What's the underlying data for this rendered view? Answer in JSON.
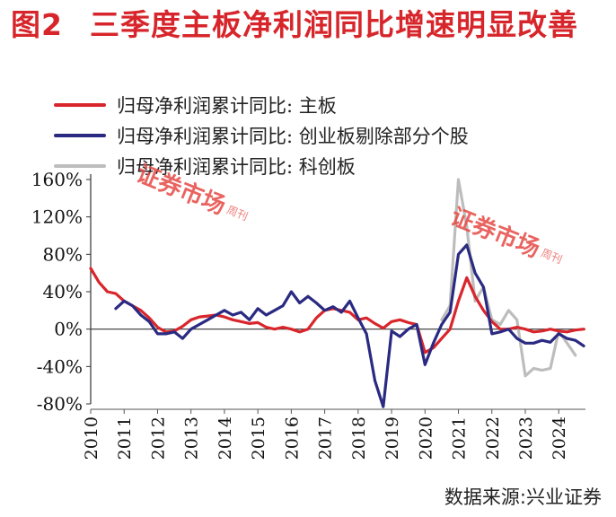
{
  "title": {
    "figure_no": "图2",
    "text": "三季度主板净利润同比增速明显改善"
  },
  "source": "数据来源:兴业证券",
  "watermark": {
    "main": "证券市场",
    "side": "周刊"
  },
  "colors": {
    "title": "#d7262b",
    "main_board": "#d8262c",
    "chinext": "#2a2a82",
    "star": "#bdbdbd"
  },
  "chart_data": {
    "type": "line",
    "title": "",
    "xlabel": "",
    "ylabel": "",
    "ylim": [
      -80,
      160
    ],
    "xlim": [
      2010,
      2024.8
    ],
    "yticks": [
      -80,
      -40,
      0,
      40,
      80,
      120,
      160
    ],
    "ytick_labels": [
      "-80%",
      "-40%",
      "0%",
      "40%",
      "80%",
      "120%",
      "160%"
    ],
    "xticks": [
      2010,
      2011,
      2012,
      2013,
      2014,
      2015,
      2016,
      2017,
      2018,
      2019,
      2020,
      2021,
      2022,
      2023,
      2024
    ],
    "xtick_labels": [
      "2010",
      "2011",
      "2012",
      "2013",
      "2014",
      "2015",
      "2016",
      "2017",
      "2018",
      "2019",
      "2020",
      "2021",
      "2022",
      "2023",
      "2024"
    ],
    "grid": false,
    "legend_position": "top-left",
    "series": [
      {
        "name": "归母净利润累计同比: 主板",
        "color": "#d8262c",
        "points": [
          [
            2010.0,
            65
          ],
          [
            2010.25,
            50
          ],
          [
            2010.5,
            40
          ],
          [
            2010.75,
            38
          ],
          [
            2011.0,
            30
          ],
          [
            2011.25,
            25
          ],
          [
            2011.5,
            20
          ],
          [
            2011.75,
            12
          ],
          [
            2012.0,
            2
          ],
          [
            2012.25,
            -3
          ],
          [
            2012.5,
            -2
          ],
          [
            2012.75,
            3
          ],
          [
            2013.0,
            10
          ],
          [
            2013.25,
            13
          ],
          [
            2013.5,
            14
          ],
          [
            2013.75,
            15
          ],
          [
            2014.0,
            13
          ],
          [
            2014.25,
            10
          ],
          [
            2014.5,
            8
          ],
          [
            2014.75,
            6
          ],
          [
            2015.0,
            7
          ],
          [
            2015.25,
            2
          ],
          [
            2015.5,
            0
          ],
          [
            2015.75,
            2
          ],
          [
            2016.0,
            0
          ],
          [
            2016.25,
            -3
          ],
          [
            2016.5,
            0
          ],
          [
            2016.75,
            12
          ],
          [
            2017.0,
            20
          ],
          [
            2017.25,
            22
          ],
          [
            2017.5,
            20
          ],
          [
            2017.75,
            18
          ],
          [
            2018.0,
            10
          ],
          [
            2018.25,
            12
          ],
          [
            2018.5,
            6
          ],
          [
            2018.75,
            1
          ],
          [
            2019.0,
            8
          ],
          [
            2019.25,
            10
          ],
          [
            2019.5,
            7
          ],
          [
            2019.75,
            5
          ],
          [
            2020.0,
            -25
          ],
          [
            2020.25,
            -20
          ],
          [
            2020.5,
            -10
          ],
          [
            2020.75,
            0
          ],
          [
            2021.0,
            30
          ],
          [
            2021.25,
            55
          ],
          [
            2021.5,
            35
          ],
          [
            2021.75,
            20
          ],
          [
            2022.0,
            8
          ],
          [
            2022.25,
            0
          ],
          [
            2022.5,
            0
          ],
          [
            2022.75,
            2
          ],
          [
            2023.0,
            0
          ],
          [
            2023.25,
            -3
          ],
          [
            2023.5,
            -2
          ],
          [
            2023.75,
            0
          ],
          [
            2024.0,
            -2
          ],
          [
            2024.25,
            -3
          ],
          [
            2024.5,
            -1
          ],
          [
            2024.75,
            0
          ]
        ]
      },
      {
        "name": "归母净利润累计同比: 创业板剔除部分个股",
        "color": "#2a2a82",
        "points": [
          [
            2010.75,
            22
          ],
          [
            2011.0,
            30
          ],
          [
            2011.25,
            25
          ],
          [
            2011.5,
            15
          ],
          [
            2011.75,
            8
          ],
          [
            2012.0,
            -5
          ],
          [
            2012.25,
            -5
          ],
          [
            2012.5,
            -3
          ],
          [
            2012.75,
            -10
          ],
          [
            2013.0,
            0
          ],
          [
            2013.25,
            5
          ],
          [
            2013.5,
            10
          ],
          [
            2013.75,
            15
          ],
          [
            2014.0,
            20
          ],
          [
            2014.25,
            15
          ],
          [
            2014.5,
            18
          ],
          [
            2014.75,
            10
          ],
          [
            2015.0,
            22
          ],
          [
            2015.25,
            15
          ],
          [
            2015.5,
            20
          ],
          [
            2015.75,
            25
          ],
          [
            2016.0,
            40
          ],
          [
            2016.25,
            28
          ],
          [
            2016.5,
            35
          ],
          [
            2016.75,
            28
          ],
          [
            2017.0,
            20
          ],
          [
            2017.25,
            24
          ],
          [
            2017.5,
            18
          ],
          [
            2017.75,
            30
          ],
          [
            2018.0,
            12
          ],
          [
            2018.25,
            -5
          ],
          [
            2018.5,
            -55
          ],
          [
            2018.75,
            -83
          ],
          [
            2019.0,
            -2
          ],
          [
            2019.25,
            -8
          ],
          [
            2019.5,
            0
          ],
          [
            2019.75,
            5
          ],
          [
            2020.0,
            -38
          ],
          [
            2020.25,
            -15
          ],
          [
            2020.5,
            5
          ],
          [
            2020.75,
            18
          ],
          [
            2021.0,
            80
          ],
          [
            2021.25,
            90
          ],
          [
            2021.5,
            60
          ],
          [
            2021.75,
            45
          ],
          [
            2022.0,
            -5
          ],
          [
            2022.25,
            -3
          ],
          [
            2022.5,
            0
          ],
          [
            2022.75,
            -10
          ],
          [
            2023.0,
            -15
          ],
          [
            2023.25,
            -15
          ],
          [
            2023.5,
            -12
          ],
          [
            2023.75,
            -14
          ],
          [
            2024.0,
            -5
          ],
          [
            2024.25,
            -10
          ],
          [
            2024.5,
            -12
          ],
          [
            2024.75,
            -18
          ]
        ]
      },
      {
        "name": "归母净利润累计同比: 科创板",
        "color": "#bdbdbd",
        "points": [
          [
            2020.5,
            10
          ],
          [
            2020.75,
            25
          ],
          [
            2021.0,
            160
          ],
          [
            2021.25,
            110
          ],
          [
            2021.5,
            30
          ],
          [
            2021.75,
            45
          ],
          [
            2022.0,
            10
          ],
          [
            2022.25,
            5
          ],
          [
            2022.5,
            20
          ],
          [
            2022.75,
            10
          ],
          [
            2023.0,
            -50
          ],
          [
            2023.25,
            -42
          ],
          [
            2023.5,
            -44
          ],
          [
            2023.75,
            -42
          ],
          [
            2024.0,
            -2
          ],
          [
            2024.25,
            -15
          ],
          [
            2024.5,
            -28
          ]
        ]
      }
    ]
  }
}
